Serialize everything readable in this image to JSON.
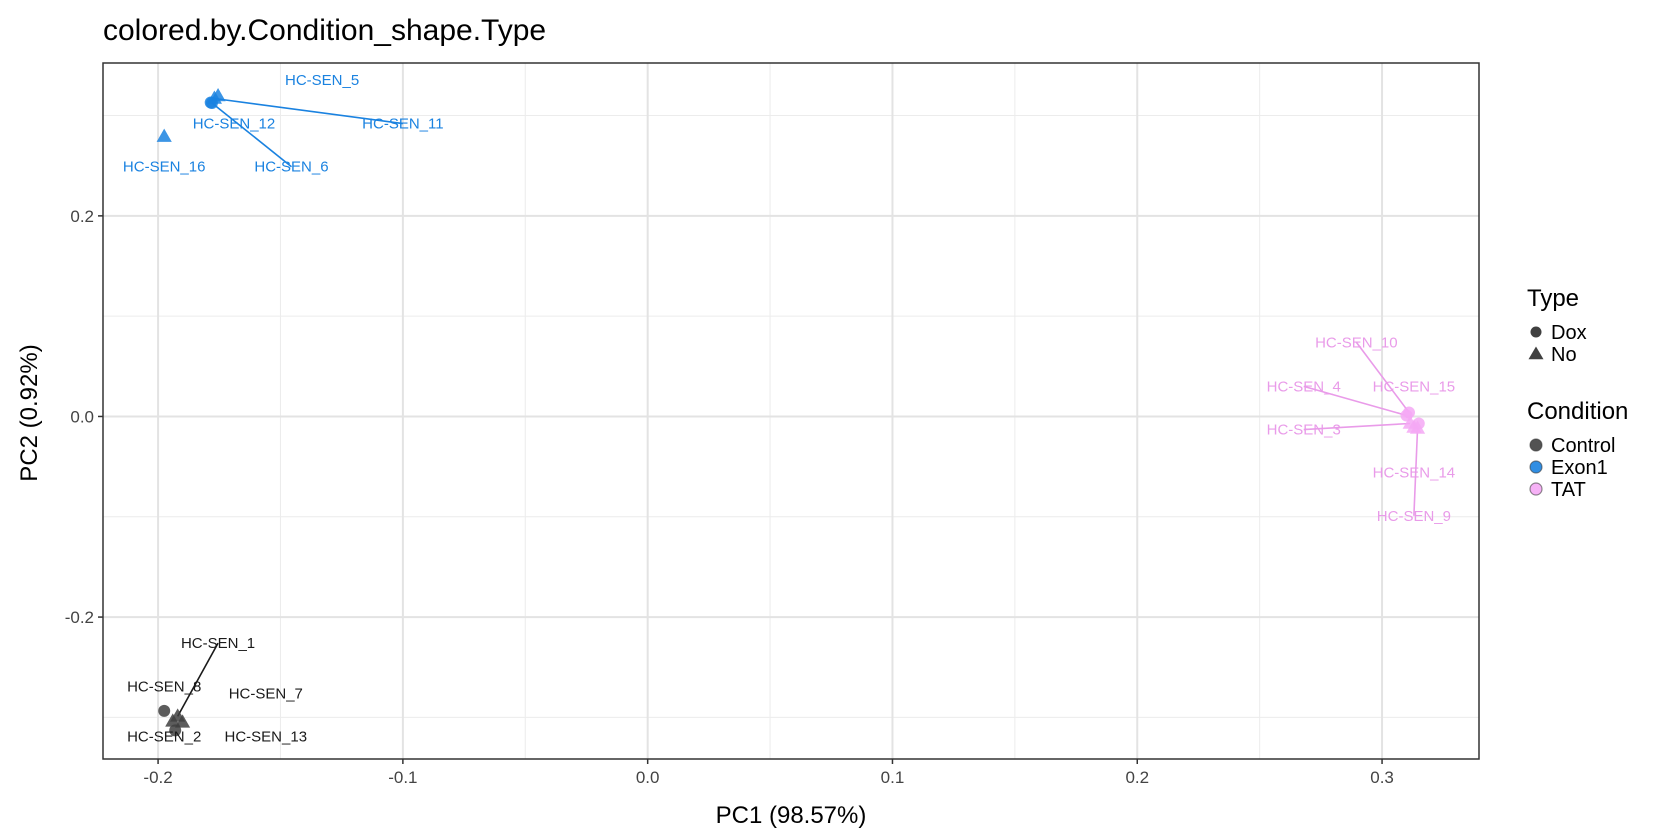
{
  "chart_data": {
    "type": "scatter",
    "title": "colored.by.Condition_shape.Type",
    "xlabel": "PC1 (98.57%)",
    "ylabel": "PC2 (0.92%)",
    "xlim": [
      -0.2225,
      0.3396
    ],
    "ylim": [
      -0.3415,
      0.3524
    ],
    "x_ticks": [
      -0.2,
      -0.1,
      0.0,
      0.1,
      0.2,
      0.3
    ],
    "x_tick_labels": [
      "-0.2",
      "-0.1",
      "0.0",
      "0.1",
      "0.2",
      "0.3"
    ],
    "y_ticks": [
      -0.2,
      0.0,
      0.2
    ],
    "y_tick_labels": [
      "-0.2",
      "0.0",
      "0.2"
    ],
    "grid": true,
    "legend_position": "right",
    "legends": [
      {
        "title": "Type",
        "items": [
          {
            "label": "Dox",
            "shape": "circle"
          },
          {
            "label": "No",
            "shape": "triangle"
          }
        ]
      },
      {
        "title": "Condition",
        "items": [
          {
            "label": "Control",
            "color": "#404040"
          },
          {
            "label": "Exon1",
            "color": "#1a82e0"
          },
          {
            "label": "TAT",
            "color": "#f5a8f5"
          }
        ]
      }
    ],
    "colors": {
      "Control": "#404040",
      "Exon1": "#1a82e0",
      "TAT": "#f5a8f5"
    },
    "label_colors": {
      "Control": "#1a1a1a",
      "Exon1": "#1a82e0",
      "TAT": "#e99be9"
    },
    "points": [
      {
        "name": "HC-SEN_5",
        "x": -0.1755,
        "y": 0.3195,
        "condition": "Exon1",
        "type": "No",
        "label_x": -0.133,
        "label_y": 0.3305,
        "leader": false
      },
      {
        "name": "HC-SEN_11",
        "x": -0.177,
        "y": 0.317,
        "condition": "Exon1",
        "type": "No",
        "label_x": -0.1,
        "label_y": 0.287,
        "leader": true
      },
      {
        "name": "HC-SEN_12",
        "x": -0.1785,
        "y": 0.313,
        "condition": "Exon1",
        "type": "Dox",
        "label_x": -0.169,
        "label_y": 0.287,
        "leader": false
      },
      {
        "name": "HC-SEN_6",
        "x": -0.178,
        "y": 0.3125,
        "condition": "Exon1",
        "type": "Dox",
        "label_x": -0.1455,
        "label_y": 0.244,
        "leader": true
      },
      {
        "name": "HC-SEN_16",
        "x": -0.1975,
        "y": 0.279,
        "condition": "Exon1",
        "type": "No",
        "label_x": -0.1975,
        "label_y": 0.244,
        "leader": false
      },
      {
        "name": "HC-SEN_10",
        "x": 0.311,
        "y": 0.004,
        "condition": "TAT",
        "type": "Dox",
        "label_x": 0.2895,
        "label_y": 0.069,
        "leader": true
      },
      {
        "name": "HC-SEN_4",
        "x": 0.31,
        "y": 0.001,
        "condition": "TAT",
        "type": "Dox",
        "label_x": 0.268,
        "label_y": 0.025,
        "leader": true
      },
      {
        "name": "HC-SEN_15",
        "x": 0.315,
        "y": -0.007,
        "condition": "TAT",
        "type": "Dox",
        "label_x": 0.313,
        "label_y": 0.025,
        "leader": false
      },
      {
        "name": "HC-SEN_3",
        "x": 0.3115,
        "y": -0.007,
        "condition": "TAT",
        "type": "No",
        "label_x": 0.268,
        "label_y": -0.018,
        "leader": true
      },
      {
        "name": "HC-SEN_14",
        "x": 0.313,
        "y": -0.011,
        "condition": "TAT",
        "type": "No",
        "label_x": 0.313,
        "label_y": -0.061,
        "leader": false
      },
      {
        "name": "HC-SEN_9",
        "x": 0.3145,
        "y": -0.012,
        "condition": "TAT",
        "type": "No",
        "label_x": 0.313,
        "label_y": -0.104,
        "leader": true
      },
      {
        "name": "HC-SEN_8",
        "x": -0.1975,
        "y": -0.2935,
        "condition": "Control",
        "type": "Dox",
        "label_x": -0.1975,
        "label_y": -0.274,
        "leader": false
      },
      {
        "name": "HC-SEN_1",
        "x": -0.192,
        "y": -0.299,
        "condition": "Control",
        "type": "No",
        "label_x": -0.1755,
        "label_y": -0.231,
        "leader": true
      },
      {
        "name": "HC-SEN_7",
        "x": -0.19,
        "y": -0.305,
        "condition": "Control",
        "type": "No",
        "label_x": -0.156,
        "label_y": -0.281,
        "leader": false
      },
      {
        "name": "HC-SEN_2",
        "x": -0.193,
        "y": -0.313,
        "condition": "Control",
        "type": "Dox",
        "label_x": -0.1975,
        "label_y": -0.324,
        "leader": false
      },
      {
        "name": "HC-SEN_13",
        "x": -0.194,
        "y": -0.304,
        "condition": "Control",
        "type": "No",
        "label_x": -0.156,
        "label_y": -0.324,
        "leader": false
      }
    ]
  }
}
